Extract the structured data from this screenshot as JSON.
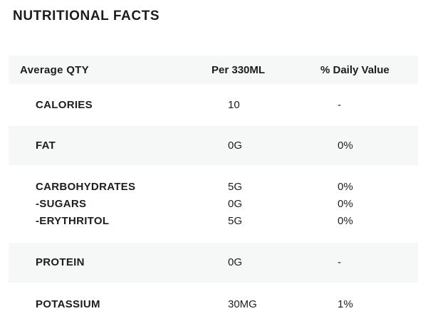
{
  "title": "NUTRITIONAL FACTS",
  "colors": {
    "background": "#ffffff",
    "band": "#f6f7f7",
    "text": "#1d1d1b"
  },
  "table": {
    "headers": [
      "Average QTY",
      "Per 330ML",
      "% Daily Value"
    ],
    "groups": [
      {
        "shaded": false,
        "rows": [
          {
            "label": "CALORIES",
            "per_330ml": "10",
            "daily_value": "-"
          }
        ]
      },
      {
        "shaded": true,
        "rows": [
          {
            "label": "FAT",
            "per_330ml": "0G",
            "daily_value": "0%"
          }
        ]
      },
      {
        "shaded": false,
        "rows": [
          {
            "label": "CARBOHYDRATES",
            "per_330ml": "5G",
            "daily_value": "0%"
          },
          {
            "label": "-SUGARS",
            "per_330ml": "0G",
            "daily_value": "0%"
          },
          {
            "label": "-ERYTHRITOL",
            "per_330ml": "5G",
            "daily_value": "0%"
          }
        ]
      },
      {
        "shaded": true,
        "rows": [
          {
            "label": "PROTEIN",
            "per_330ml": "0G",
            "daily_value": "-"
          }
        ]
      },
      {
        "shaded": false,
        "rows": [
          {
            "label": "POTASSIUM",
            "per_330ml": "30MG",
            "daily_value": "1%"
          }
        ]
      }
    ]
  }
}
